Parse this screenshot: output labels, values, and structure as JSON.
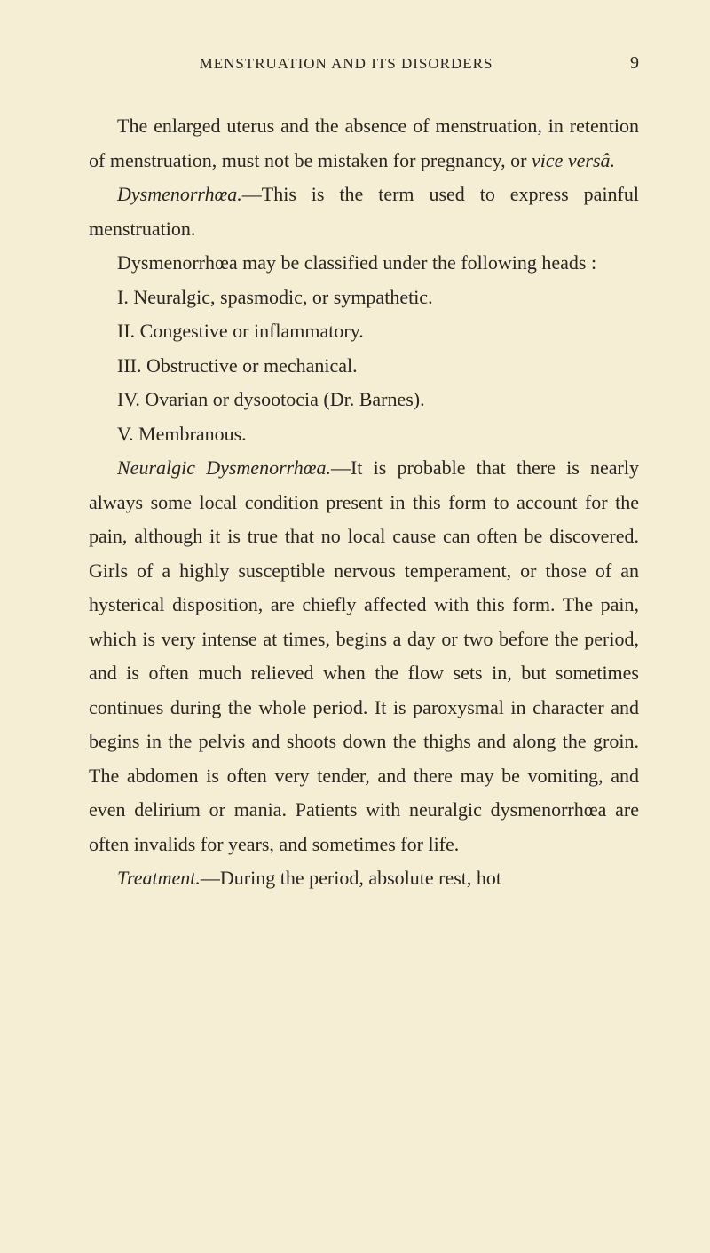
{
  "page": {
    "running_header": "MENSTRUATION AND ITS DISORDERS",
    "page_number": "9"
  },
  "paragraphs": {
    "p1_pre": "The enlarged uterus and the absence of menstruation, in retention of menstruation, must not be mistaken for pregnancy, or ",
    "p1_italic": "vice versâ.",
    "p2_italic": "Dysmenorrhœa.",
    "p2_post": "—This is the term used to express painful menstruation.",
    "p3": "Dysmenorrhœa may be classified under the following heads :",
    "list": {
      "i": "I. Neuralgic, spasmodic, or sympathetic.",
      "ii": "II. Congestive or inflammatory.",
      "iii": "III. Obstructive or mechanical.",
      "iv": "IV. Ovarian or dysootocia (Dr. Barnes).",
      "v": "V. Membranous."
    },
    "p4_italic": "Neuralgic Dysmenorrhœa.",
    "p4_post": "—It is probable that there is nearly always some local condition present in this form to account for the pain, although it is true that no local cause can often be discovered. Girls of a highly susceptible nervous temperament, or those of an hysterical disposition, are chiefly affected with this form. The pain, which is very intense at times, begins a day or two before the period, and is often much relieved when the flow sets in, but sometimes continues during the whole period. It is paroxysmal in character and begins in the pelvis and shoots down the thighs and along the groin. The abdomen is often very tender, and there may be vomiting, and even delirium or mania. Patients with neuralgic dysmenorrhœa are often invalids for years, and sometimes for life.",
    "p5_italic": "Treatment.",
    "p5_post": "—During the period, absolute rest, hot"
  },
  "styling": {
    "background_color": "#f5eed4",
    "text_color": "#2a2520",
    "body_font_size": 22,
    "line_height": 1.75,
    "header_font_size": 17,
    "page_number_font_size": 20,
    "text_indent": 32
  }
}
